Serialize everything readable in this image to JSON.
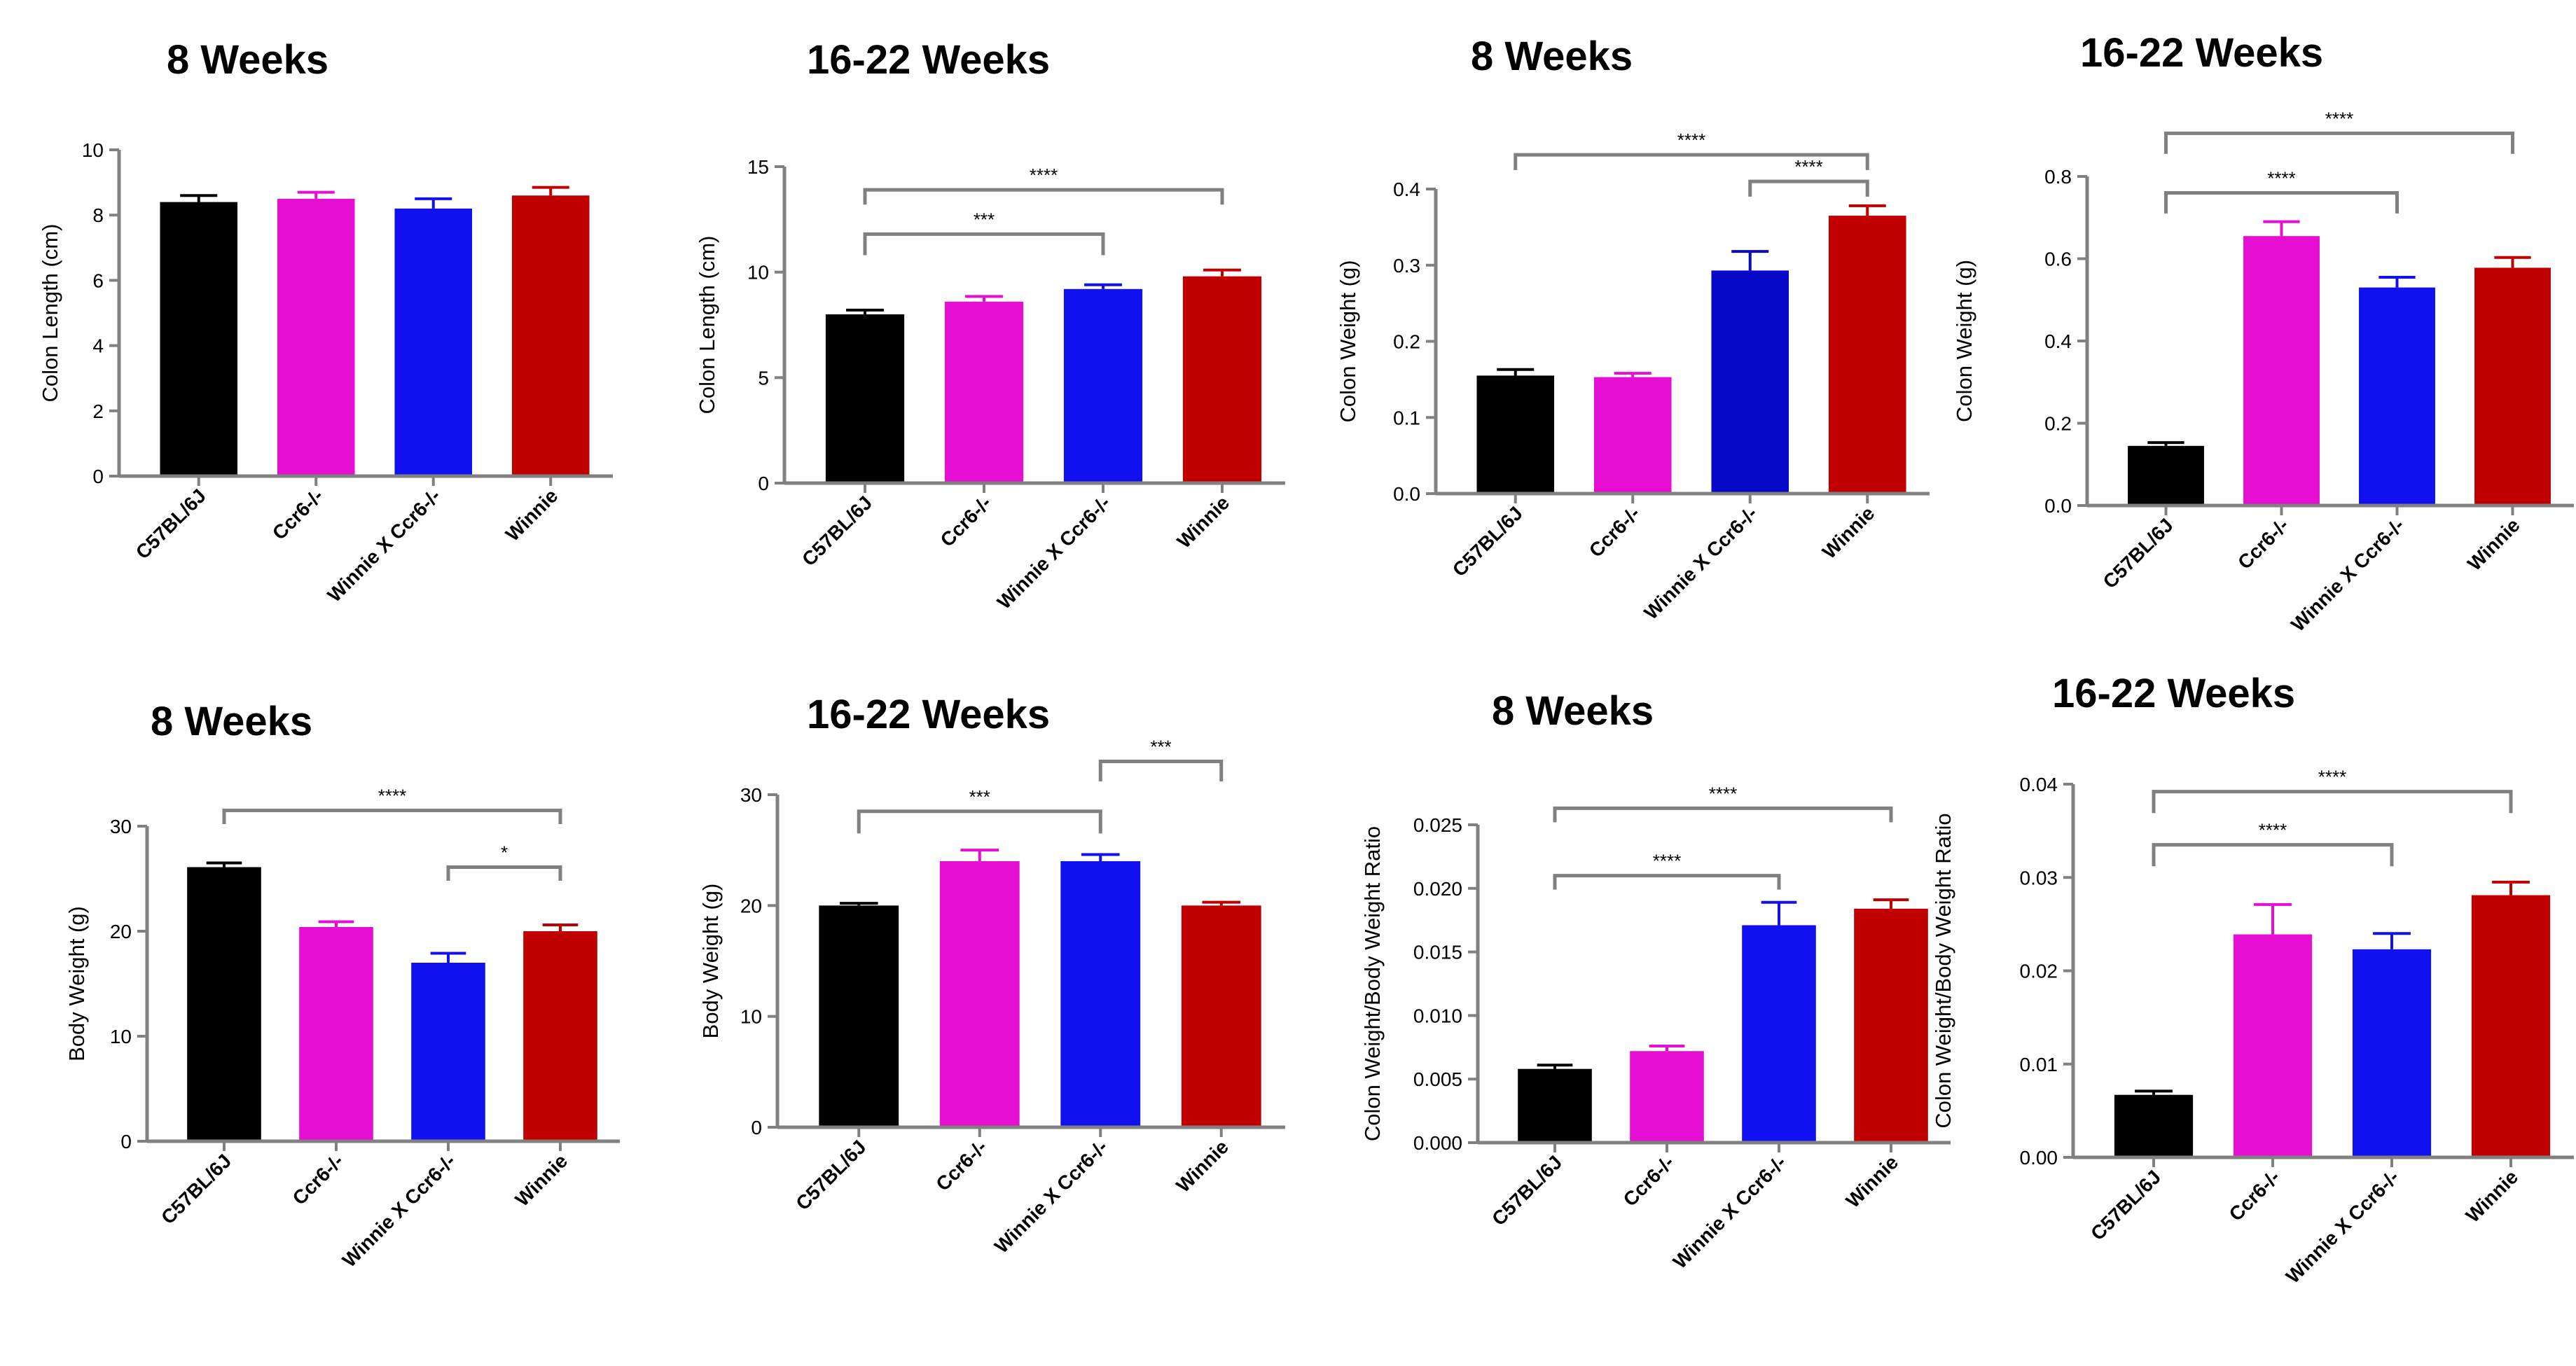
{
  "figure": {
    "colors": {
      "C57BL/6J": "#000000",
      "Ccr6-/-": "#e60ed2",
      "Winnie X Ccr6-/-": "#1010f0",
      "Winnie": "#c00000",
      "axis": "#808080",
      "bracket": "#808080"
    }
  },
  "chart_data": [
    {
      "type": "bar",
      "title": "8 Weeks",
      "ylabel": "Colon Length (cm)",
      "categories": [
        "C57BL/6J",
        "Ccr6-/-",
        "Winnie X Ccr6-/-",
        "Winnie"
      ],
      "values": [
        8.4,
        8.5,
        8.2,
        8.6
      ],
      "errors": [
        0.2,
        0.2,
        0.3,
        0.25
      ],
      "ylim": [
        0,
        10
      ],
      "yticks": [
        0,
        2,
        4,
        6,
        8,
        10
      ],
      "ytick_labels": [
        "0",
        "2",
        "4",
        "6",
        "8",
        "10"
      ],
      "bar_colors": [
        "#000000",
        "#e60ed2",
        "#1010f0",
        "#c00000"
      ],
      "comparisons": []
    },
    {
      "type": "bar",
      "title": "16-22 Weeks",
      "ylabel": "Colon Length (cm)",
      "categories": [
        "C57BL/6J",
        "Ccr6-/-",
        "Winnie X Ccr6-/-",
        "Winnie"
      ],
      "values": [
        8.0,
        8.6,
        9.2,
        9.8
      ],
      "errors": [
        0.2,
        0.25,
        0.2,
        0.3
      ],
      "ylim": [
        0,
        15
      ],
      "yticks": [
        0,
        5,
        10,
        15
      ],
      "ytick_labels": [
        "0",
        "5",
        "10",
        "15"
      ],
      "bar_colors": [
        "#000000",
        "#e60ed2",
        "#1010f0",
        "#c00000"
      ],
      "comparisons": [
        {
          "from": 0,
          "to": 3,
          "label": "****",
          "level": 13.9,
          "drop": 0.7
        },
        {
          "from": 0,
          "to": 2,
          "label": "***",
          "level": 11.8,
          "drop": 1.0
        }
      ]
    },
    {
      "type": "bar",
      "title": "8 Weeks",
      "ylabel": "Colon Weight (g)",
      "categories": [
        "C57BL/6J",
        "Ccr6-/-",
        "Winnie X Ccr6-/-",
        "Winnie"
      ],
      "values": [
        0.155,
        0.153,
        0.293,
        0.365
      ],
      "errors": [
        0.008,
        0.005,
        0.025,
        0.013
      ],
      "ylim": [
        0,
        0.4
      ],
      "yticks": [
        0,
        0.1,
        0.2,
        0.3,
        0.4
      ],
      "ytick_labels": [
        "0.0",
        "0.1",
        "0.2",
        "0.3",
        "0.4"
      ],
      "bar_colors": [
        "#000000",
        "#e60ed2",
        "#0808c8",
        "#c00000"
      ],
      "comparisons": [
        {
          "from": 0,
          "to": 3,
          "label": "****",
          "level": 0.445,
          "drop": 0.02
        },
        {
          "from": 2,
          "to": 3,
          "label": "****",
          "level": 0.41,
          "drop": 0.02
        }
      ]
    },
    {
      "type": "bar",
      "title": "16-22 Weeks",
      "ylabel": "Colon Weight (g)",
      "categories": [
        "C57BL/6J",
        "Ccr6-/-",
        "Winnie X Ccr6-/-",
        "Winnie"
      ],
      "values": [
        0.145,
        0.655,
        0.53,
        0.578
      ],
      "errors": [
        0.008,
        0.035,
        0.025,
        0.025
      ],
      "ylim": [
        0,
        0.8
      ],
      "yticks": [
        0,
        0.2,
        0.4,
        0.6,
        0.8
      ],
      "ytick_labels": [
        "0.0",
        "0.2",
        "0.4",
        "0.6",
        "0.8"
      ],
      "bar_colors": [
        "#000000",
        "#e60ed2",
        "#1010f0",
        "#c00000"
      ],
      "comparisons": [
        {
          "from": 0,
          "to": 3,
          "label": "****",
          "level": 0.905,
          "drop": 0.05
        },
        {
          "from": 0,
          "to": 2,
          "label": "****",
          "level": 0.76,
          "drop": 0.05
        }
      ]
    },
    {
      "type": "bar",
      "title": "8 Weeks",
      "ylabel": "Body Weight (g)",
      "categories": [
        "C57BL/6J",
        "Ccr6-/-",
        "Winnie X Ccr6-/-",
        "Winnie"
      ],
      "values": [
        26.1,
        20.4,
        17.0,
        20.0
      ],
      "errors": [
        0.4,
        0.5,
        0.9,
        0.6
      ],
      "ylim": [
        0,
        30
      ],
      "yticks": [
        0,
        10,
        20,
        30
      ],
      "ytick_labels": [
        "0",
        "10",
        "20",
        "30"
      ],
      "bar_colors": [
        "#000000",
        "#e60ed2",
        "#1010f0",
        "#c00000"
      ],
      "comparisons": [
        {
          "from": 0,
          "to": 3,
          "label": "****",
          "level": 31.5,
          "drop": 1.3
        },
        {
          "from": 2,
          "to": 3,
          "label": "*",
          "level": 26.1,
          "drop": 1.3
        }
      ]
    },
    {
      "type": "bar",
      "title": "16-22 Weeks",
      "ylabel": "Body Weight (g)",
      "categories": [
        "C57BL/6J",
        "Ccr6-/-",
        "Winnie X Ccr6-/-",
        "Winnie"
      ],
      "values": [
        20.0,
        24.0,
        24.0,
        20.0
      ],
      "errors": [
        0.2,
        1.0,
        0.6,
        0.3
      ],
      "ylim": [
        0,
        30
      ],
      "yticks": [
        0,
        10,
        20,
        30
      ],
      "ytick_labels": [
        "0",
        "10",
        "20",
        "30"
      ],
      "bar_colors": [
        "#000000",
        "#e60ed2",
        "#1010f0",
        "#c00000"
      ],
      "comparisons": [
        {
          "from": 0,
          "to": 2,
          "label": "***",
          "level": 28.5,
          "drop": 2.0
        },
        {
          "from": 2,
          "to": 3,
          "label": "***",
          "level": 33.0,
          "drop": 1.8
        }
      ]
    },
    {
      "type": "bar",
      "title": "8 Weeks",
      "ylabel": "Colon Weight/Body Weight Ratio",
      "categories": [
        "C57BL/6J",
        "Ccr6-/-",
        "Winnie X Ccr6-/-",
        "Winnie"
      ],
      "values": [
        0.0058,
        0.0072,
        0.0171,
        0.0184
      ],
      "errors": [
        0.0003,
        0.0004,
        0.0018,
        0.0007
      ],
      "ylim": [
        0,
        0.025
      ],
      "yticks": [
        0,
        0.005,
        0.01,
        0.015,
        0.02,
        0.025
      ],
      "ytick_labels": [
        "0.000",
        "0.005",
        "0.010",
        "0.015",
        "0.020",
        "0.025"
      ],
      "bar_colors": [
        "#000000",
        "#e60ed2",
        "#1010f0",
        "#c00000"
      ],
      "comparisons": [
        {
          "from": 0,
          "to": 3,
          "label": "****",
          "level": 0.0263,
          "drop": 0.0011
        },
        {
          "from": 0,
          "to": 2,
          "label": "****",
          "level": 0.021,
          "drop": 0.0011
        }
      ]
    },
    {
      "type": "bar",
      "title": "16-22 Weeks",
      "ylabel": "Colon Weight/Body Weight Ratio",
      "categories": [
        "C57BL/6J",
        "Ccr6-/-",
        "Winnie X Ccr6-/-",
        "Winnie"
      ],
      "values": [
        0.0067,
        0.0239,
        0.0223,
        0.0281
      ],
      "errors": [
        0.0004,
        0.0032,
        0.0017,
        0.0014
      ],
      "ylim": [
        0,
        0.04
      ],
      "yticks": [
        0,
        0.01,
        0.02,
        0.03,
        0.04
      ],
      "ytick_labels": [
        "0.00",
        "0.01",
        "0.02",
        "0.03",
        "0.04"
      ],
      "bar_colors": [
        "#000000",
        "#e60ed2",
        "#1010f0",
        "#c00000"
      ],
      "comparisons": [
        {
          "from": 0,
          "to": 3,
          "label": "****",
          "level": 0.0392,
          "drop": 0.0023
        },
        {
          "from": 0,
          "to": 2,
          "label": "****",
          "level": 0.0335,
          "drop": 0.0023
        }
      ]
    }
  ]
}
